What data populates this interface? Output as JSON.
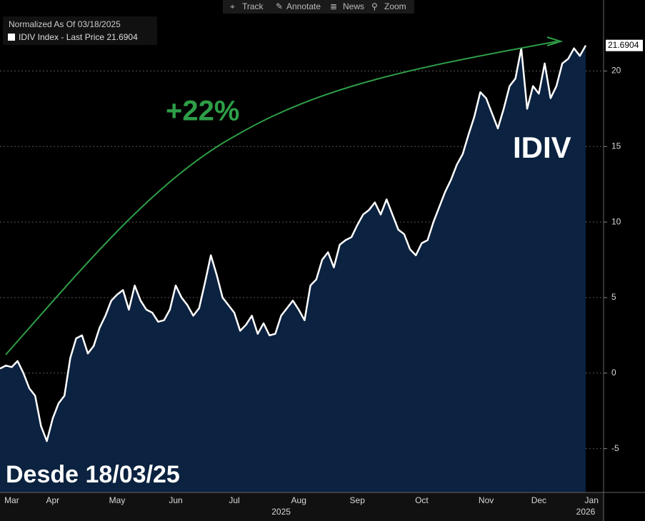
{
  "toolbar": [
    "Track",
    "Annotate",
    "News",
    "Zoom"
  ],
  "chart_data": {
    "type": "area",
    "subtitle": "Normalized As Of 03/18/2025",
    "series_name": "IDIV Index - Last Price 21.6904",
    "last_price": 21.6904,
    "annotations": [
      "+22%",
      "IDIV",
      "Desde 18/03/25"
    ],
    "color": "#ffffff",
    "fill": "#0b2240",
    "trend_color": "#2e9e47",
    "categories": [
      null,
      null,
      "Mar",
      null,
      null,
      null,
      null,
      null,
      null,
      "Apr",
      null,
      null,
      null,
      null,
      null,
      null,
      null,
      null,
      null,
      null,
      "May",
      null,
      null,
      null,
      null,
      null,
      null,
      null,
      null,
      null,
      "Jun",
      null,
      null,
      null,
      null,
      null,
      null,
      null,
      null,
      null,
      "Jul",
      null,
      null,
      null,
      null,
      null,
      null,
      null,
      null,
      null,
      null,
      "Aug",
      null,
      null,
      null,
      null,
      null,
      null,
      null,
      null,
      null,
      "Sep",
      null,
      null,
      null,
      null,
      null,
      null,
      null,
      null,
      null,
      null,
      "Oct",
      null,
      null,
      null,
      null,
      null,
      null,
      null,
      null,
      null,
      null,
      "Nov",
      null,
      null,
      null,
      null,
      null,
      null,
      null,
      null,
      "Dec",
      null,
      null,
      null,
      null,
      null,
      null,
      null,
      null,
      "Jan"
    ],
    "years": [
      null,
      null,
      null,
      null,
      null,
      null,
      null,
      null,
      null,
      null,
      null,
      null,
      null,
      null,
      null,
      null,
      null,
      null,
      null,
      null,
      null,
      null,
      null,
      null,
      null,
      null,
      null,
      null,
      null,
      null,
      null,
      null,
      null,
      null,
      null,
      null,
      null,
      null,
      null,
      null,
      null,
      null,
      null,
      null,
      null,
      null,
      null,
      null,
      "2025",
      null,
      null,
      null,
      null,
      null,
      null,
      null,
      null,
      null,
      null,
      null,
      null,
      null,
      null,
      null,
      null,
      null,
      null,
      null,
      null,
      null,
      null,
      null,
      null,
      null,
      null,
      null,
      null,
      null,
      null,
      null,
      null,
      null,
      null,
      null,
      null,
      null,
      null,
      null,
      null,
      null,
      null,
      null,
      null,
      null,
      null,
      null,
      null,
      null,
      null,
      null,
      "2026",
      null
    ],
    "values": [
      0.3,
      0.5,
      0.4,
      0.8,
      0.0,
      -1.0,
      -1.5,
      -3.5,
      -4.5,
      -3.0,
      -2.0,
      -1.5,
      1.0,
      2.3,
      2.5,
      1.3,
      1.8,
      3.0,
      3.8,
      4.8,
      5.2,
      5.5,
      4.2,
      5.8,
      4.8,
      4.2,
      4.0,
      3.4,
      3.5,
      4.2,
      5.8,
      5.0,
      4.5,
      3.8,
      4.3,
      6.0,
      7.8,
      6.5,
      5.0,
      4.5,
      4.0,
      2.8,
      3.2,
      3.8,
      2.6,
      3.3,
      2.5,
      2.6,
      3.8,
      4.3,
      4.8,
      4.2,
      3.5,
      5.8,
      6.2,
      7.5,
      8.0,
      7.0,
      8.5,
      8.8,
      9.0,
      9.8,
      10.5,
      10.8,
      11.3,
      10.5,
      11.5,
      10.5,
      9.5,
      9.2,
      8.2,
      7.8,
      8.6,
      8.8,
      10.0,
      11.0,
      12.0,
      12.8,
      13.8,
      14.5,
      15.8,
      17.0,
      18.6,
      18.2,
      17.2,
      16.2,
      17.5,
      19.0,
      19.5,
      21.5,
      17.5,
      19.0,
      18.5,
      20.5,
      18.2,
      19.0,
      20.5,
      20.8,
      21.5,
      21.0,
      21.6904,
      null
    ],
    "ylim": [
      -7.9,
      24.7
    ],
    "yticks": [
      -5,
      0,
      5,
      10,
      15,
      20
    ],
    "grid": true
  }
}
